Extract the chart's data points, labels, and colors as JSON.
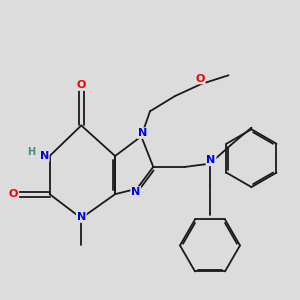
{
  "bg_color": "#dcdcdc",
  "bond_color": "#1a1a1a",
  "N_color": "#0000ee",
  "O_color": "#ee0000",
  "H_color": "#4a8888",
  "lw": 1.3,
  "sep": 0.022,
  "fs": 8.0,
  "fs_small": 7.0,
  "xlim": [
    0.25,
    2.95
  ],
  "ylim": [
    0.2,
    2.95
  ]
}
